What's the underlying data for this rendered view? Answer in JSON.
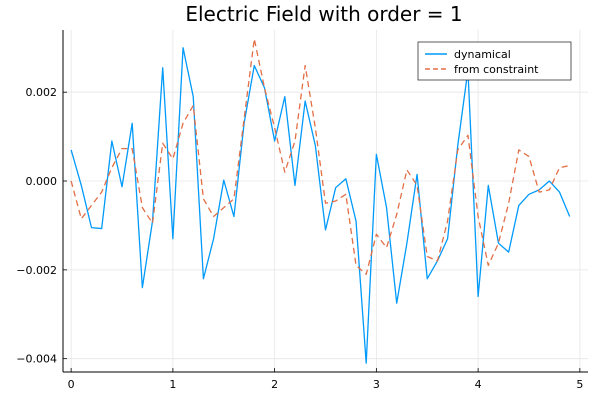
{
  "chart_data": {
    "type": "line",
    "title": "Electric Field with order = 1",
    "xlabel": "",
    "ylabel": "",
    "xlim": [
      -0.08,
      5.08
    ],
    "ylim": [
      -0.0043,
      0.0034
    ],
    "grid": true,
    "legend_position": "top-right",
    "x_ticks": [
      {
        "value": 0,
        "label": "0"
      },
      {
        "value": 1,
        "label": "1"
      },
      {
        "value": 2,
        "label": "2"
      },
      {
        "value": 3,
        "label": "3"
      },
      {
        "value": 4,
        "label": "4"
      },
      {
        "value": 5,
        "label": "5"
      }
    ],
    "y_ticks": [
      {
        "value": -0.004,
        "label": "−0.004"
      },
      {
        "value": -0.002,
        "label": "−0.002"
      },
      {
        "value": 0.0,
        "label": "0.000"
      },
      {
        "value": 0.002,
        "label": "0.002"
      }
    ],
    "x": [
      0.0,
      0.1,
      0.2,
      0.3,
      0.4,
      0.5,
      0.6,
      0.7,
      0.8,
      0.9,
      1.0,
      1.1,
      1.2,
      1.3,
      1.4,
      1.5,
      1.6,
      1.7,
      1.8,
      1.9,
      2.0,
      2.1,
      2.2,
      2.3,
      2.4,
      2.5,
      2.6,
      2.7,
      2.8,
      2.9,
      3.0,
      3.1,
      3.2,
      3.3,
      3.4,
      3.5,
      3.6,
      3.7,
      3.8,
      3.9,
      4.0,
      4.1,
      4.2,
      4.3,
      4.4,
      4.5,
      4.6,
      4.7,
      4.8,
      4.9
    ],
    "series": [
      {
        "name": "dynamical",
        "color": "#009AFA",
        "dash": "solid",
        "values": [
          0.0007,
          -0.0001,
          -0.00105,
          -0.00107,
          0.0009,
          -0.00013,
          0.0013,
          -0.0024,
          -0.0009,
          0.00255,
          -0.0013,
          0.003,
          0.0019,
          -0.0022,
          -0.0013,
          2e-05,
          -0.0008,
          0.0013,
          0.0026,
          0.0021,
          0.0009,
          0.0019,
          -0.0001,
          0.0018,
          0.0008,
          -0.0011,
          -0.00015,
          5e-05,
          -0.0009,
          -0.0041,
          0.0006,
          -0.0006,
          -0.00275,
          -0.0014,
          0.00015,
          -0.0022,
          -0.0018,
          -0.0013,
          0.0008,
          0.0025,
          -0.0026,
          -0.0001,
          -0.0014,
          -0.0016,
          -0.00055,
          -0.0003,
          -0.0002,
          0.0,
          -0.00025,
          -0.0008
        ]
      },
      {
        "name": "from constraint",
        "color": "#E26F46",
        "dash": "dashed",
        "values": [
          0.0,
          -0.00085,
          -0.00055,
          -0.00025,
          0.0003,
          0.00073,
          0.00073,
          -0.0006,
          -0.00095,
          0.00085,
          0.0005,
          0.0013,
          0.0017,
          -0.0004,
          -0.0008,
          -0.0006,
          -0.0004,
          0.0014,
          0.0032,
          0.0021,
          0.0012,
          0.0002,
          0.0009,
          0.0026,
          0.0012,
          -0.0005,
          -0.00045,
          -0.0003,
          -0.0019,
          -0.0021,
          -0.0012,
          -0.0015,
          -0.00075,
          0.00025,
          -0.0001,
          -0.0017,
          -0.0018,
          -0.0009,
          0.0007,
          0.00103,
          -0.0008,
          -0.0019,
          -0.0014,
          -0.0005,
          0.0007,
          0.00055,
          -0.00025,
          -0.0002,
          0.0003,
          0.00035
        ]
      }
    ]
  }
}
